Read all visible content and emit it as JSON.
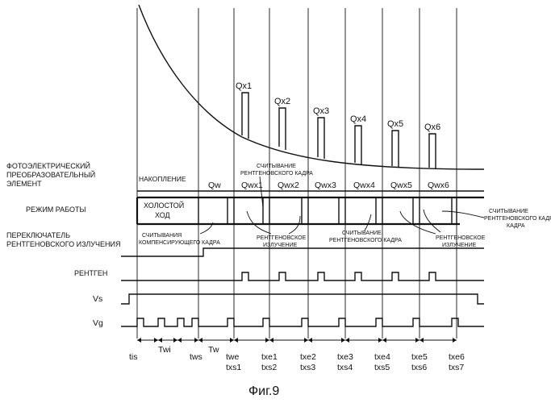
{
  "caption": "Фиг.9",
  "rows": {
    "photoelectric": [
      "ФОТОЭЛЕКТРИЧЕСКИЙ",
      "ПРЕОБРАЗОВАТЕЛЬНЫЙ",
      "ЭЛЕМЕНТ"
    ],
    "mode": "РЕЖИМ РАБОТЫ",
    "switch": [
      "ПЕРЕКЛЮЧАТЕЛЬ",
      "РЕНТГЕНОВСКОГО ИЗЛУЧЕНИЯ"
    ],
    "xray": "РЕНТГЕН",
    "vs": "Vs",
    "vg": "Vg"
  },
  "charges": [
    "Qx1",
    "Qx2",
    "Qx3",
    "Qx4",
    "Qx5",
    "Qx6"
  ],
  "periods": {
    "accumulation": "НАКОПЛЕНИЕ",
    "qw": "Qw",
    "qwx": [
      "Qwx1",
      "Qwx2",
      "Qwx3",
      "Qwx4",
      "Qwx5",
      "Qwx6"
    ],
    "idle": [
      "ХОЛОСТОЙ",
      "ХОД"
    ]
  },
  "notes": {
    "readXrayFrame": [
      "СЧИТЫВАНИЕ",
      "РЕНТГЕНОВСКОГО КАДРА"
    ],
    "frameWord": "КАДРА",
    "readCompFrame": [
      "СЧИТЫВАНИЯ",
      "КОМПЕНСИРУЮЩЕГО КАДРА"
    ],
    "xrayEmission": [
      "РЕНТГЕНОВСКОЕ",
      "ИЗЛУЧЕНИЕ"
    ]
  },
  "intervals": {
    "twi": "Twi",
    "tw": "Tw"
  },
  "ticks": {
    "top": [
      "tis",
      "tws",
      "twe",
      "txe1",
      "txe2",
      "txe3",
      "txe4",
      "txe5",
      "txe6"
    ],
    "bottom": [
      "txs1",
      "txs2",
      "txs3",
      "txs4",
      "txs5",
      "txs6",
      "txs7"
    ]
  }
}
